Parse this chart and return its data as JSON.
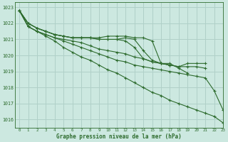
{
  "title": "Graphe pression niveau de la mer (hPa)",
  "bg_color": "#cce8e0",
  "grid_color": "#b0d0c8",
  "line_color": "#2d6b2d",
  "xlim": [
    -0.5,
    23
  ],
  "ylim": [
    1015.5,
    1023.3
  ],
  "yticks": [
    1016,
    1017,
    1018,
    1019,
    1020,
    1021,
    1022,
    1023
  ],
  "xticks": [
    0,
    1,
    2,
    3,
    4,
    5,
    6,
    7,
    8,
    9,
    10,
    11,
    12,
    13,
    14,
    15,
    16,
    17,
    18,
    19,
    20,
    21,
    22,
    23
  ],
  "series": [
    [
      1022.8,
      1022.0,
      1021.7,
      1021.5,
      1021.3,
      1021.2,
      1021.1,
      1021.1,
      1021.1,
      1021.1,
      1021.2,
      1021.2,
      1021.2,
      1021.1,
      1021.1,
      1020.9,
      1019.5,
      1019.4,
      null,
      null,
      null,
      null,
      null,
      null
    ],
    [
      1022.8,
      1022.0,
      1021.7,
      1021.5,
      1021.3,
      1021.2,
      1021.1,
      1021.1,
      1021.1,
      1021.0,
      1021.0,
      1021.0,
      1021.1,
      1021.0,
      1020.3,
      1019.7,
      1019.5,
      1019.5,
      1019.2,
      1018.9,
      null,
      null,
      null,
      null
    ],
    [
      1022.8,
      1022.0,
      1021.7,
      1021.5,
      1021.3,
      1021.2,
      1021.1,
      1021.1,
      1021.1,
      1021.0,
      1021.0,
      1021.0,
      1020.9,
      1020.5,
      1019.8,
      1019.6,
      1019.5,
      1019.4,
      1019.3,
      1019.5,
      1019.5,
      1019.5,
      null,
      null
    ],
    [
      1022.8,
      1021.8,
      1021.5,
      1021.3,
      1021.1,
      1021.0,
      1020.9,
      1020.8,
      1020.6,
      1020.4,
      1020.3,
      1020.2,
      1020.1,
      1019.9,
      1019.8,
      1019.6,
      1019.5,
      1019.4,
      1019.3,
      1019.3,
      1019.3,
      1019.2,
      null,
      null
    ],
    [
      1022.8,
      1021.8,
      1021.5,
      1021.3,
      1021.1,
      1020.9,
      1020.7,
      1020.5,
      1020.3,
      1020.1,
      1019.9,
      1019.7,
      1019.6,
      1019.4,
      1019.3,
      1019.2,
      1019.1,
      1019.0,
      1018.9,
      1018.8,
      1018.7,
      1018.6,
      1017.8,
      1016.6
    ],
    [
      1022.8,
      1021.8,
      1021.5,
      1021.2,
      1020.9,
      1020.5,
      1020.2,
      1019.9,
      1019.7,
      1019.4,
      1019.1,
      1018.9,
      1018.6,
      1018.3,
      1018.0,
      1017.7,
      1017.5,
      1017.2,
      1017.0,
      1016.8,
      1016.6,
      1016.4,
      1016.2,
      1015.8
    ]
  ]
}
